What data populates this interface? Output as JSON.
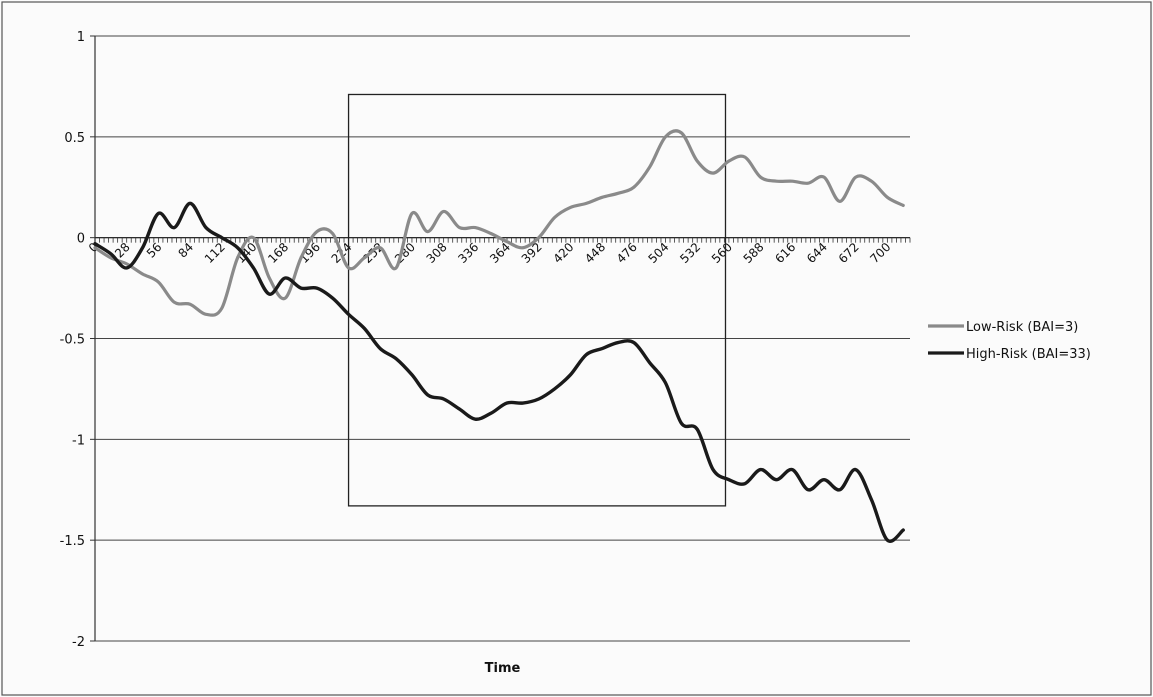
{
  "chart_data": {
    "type": "line",
    "title": "",
    "xlabel": "Time",
    "ylabel": "",
    "ylim": [
      -2,
      1
    ],
    "yticks": [
      1,
      0.5,
      0,
      -0.5,
      -1,
      -1.5,
      -2
    ],
    "ytick_labels": [
      "1",
      "0.5",
      "0",
      "-0.5",
      "-1",
      "-1.5",
      "-2"
    ],
    "xlim": [
      0,
      720
    ],
    "xtick_labels": [
      "0",
      "28",
      "56",
      "84",
      "112",
      "140",
      "168",
      "196",
      "224",
      "252",
      "280",
      "308",
      "336",
      "364",
      "392",
      "420",
      "448",
      "476",
      "504",
      "532",
      "560",
      "588",
      "616",
      "644",
      "672",
      "700"
    ],
    "grid": "horizontal",
    "legend_position": "right",
    "highlight_box": {
      "x_range": [
        224,
        557
      ],
      "y_range": [
        -1.33,
        0.71
      ]
    },
    "series": [
      {
        "name": "Low-Risk (BAI=3)",
        "color": "#8a8a8a",
        "x": [
          0,
          14,
          28,
          42,
          56,
          70,
          84,
          98,
          112,
          126,
          140,
          154,
          168,
          182,
          196,
          210,
          224,
          238,
          252,
          266,
          280,
          294,
          308,
          322,
          336,
          350,
          364,
          378,
          392,
          406,
          420,
          434,
          448,
          462,
          476,
          490,
          504,
          518,
          532,
          546,
          560,
          574,
          588,
          602,
          616,
          630,
          644,
          658,
          672,
          686,
          700,
          714
        ],
        "values": [
          -0.05,
          -0.1,
          -0.13,
          -0.18,
          -0.22,
          -0.32,
          -0.33,
          -0.38,
          -0.35,
          -0.1,
          0.0,
          -0.2,
          -0.3,
          -0.1,
          0.03,
          0.02,
          -0.15,
          -0.1,
          -0.05,
          -0.15,
          0.12,
          0.03,
          0.13,
          0.05,
          0.05,
          0.02,
          -0.02,
          -0.05,
          0.0,
          0.1,
          0.15,
          0.17,
          0.2,
          0.22,
          0.25,
          0.35,
          0.5,
          0.52,
          0.38,
          0.32,
          0.38,
          0.4,
          0.3,
          0.28,
          0.28,
          0.27,
          0.3,
          0.18,
          0.3,
          0.28,
          0.2,
          0.16
        ]
      },
      {
        "name": "High-Risk (BAI=33)",
        "color": "#1a1a1a",
        "x": [
          0,
          14,
          28,
          42,
          56,
          70,
          84,
          98,
          112,
          126,
          140,
          154,
          168,
          182,
          196,
          210,
          224,
          238,
          252,
          266,
          280,
          294,
          308,
          322,
          336,
          350,
          364,
          378,
          392,
          406,
          420,
          434,
          448,
          462,
          476,
          490,
          504,
          518,
          532,
          546,
          560,
          574,
          588,
          602,
          616,
          630,
          644,
          658,
          672,
          686,
          700,
          714
        ],
        "values": [
          -0.03,
          -0.08,
          -0.15,
          -0.05,
          0.12,
          0.05,
          0.17,
          0.05,
          0.0,
          -0.05,
          -0.15,
          -0.28,
          -0.2,
          -0.25,
          -0.25,
          -0.3,
          -0.38,
          -0.45,
          -0.55,
          -0.6,
          -0.68,
          -0.78,
          -0.8,
          -0.85,
          -0.9,
          -0.87,
          -0.82,
          -0.82,
          -0.8,
          -0.75,
          -0.68,
          -0.58,
          -0.55,
          -0.52,
          -0.52,
          -0.62,
          -0.72,
          -0.92,
          -0.95,
          -1.15,
          -1.2,
          -1.22,
          -1.15,
          -1.2,
          -1.15,
          -1.25,
          -1.2,
          -1.25,
          -1.15,
          -1.3,
          -1.5,
          -1.45
        ]
      }
    ]
  }
}
